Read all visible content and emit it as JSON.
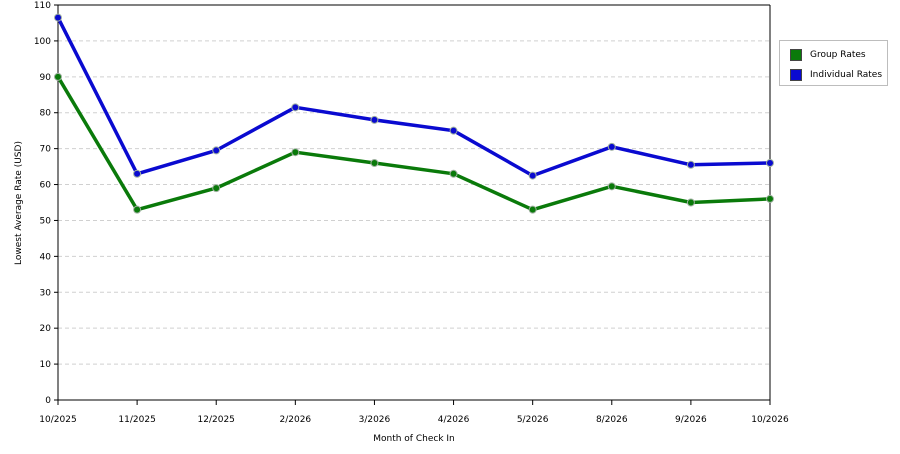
{
  "chart_data": {
    "type": "line",
    "xlabel": "Month of Check In",
    "ylabel": "Lowest Average Rate (USD)",
    "categories": [
      "10/2025",
      "11/2025",
      "12/2025",
      "2/2026",
      "3/2026",
      "4/2026",
      "5/2026",
      "8/2026",
      "9/2026",
      "10/2026"
    ],
    "ylim": [
      0,
      110
    ],
    "yticks": [
      0,
      10,
      20,
      30,
      40,
      50,
      60,
      70,
      80,
      90,
      100,
      110
    ],
    "grid": true,
    "legend_position": "right",
    "series": [
      {
        "name": "Group Rates",
        "color": "#0a7a0a",
        "values": [
          90,
          53,
          59,
          69,
          66,
          63,
          53,
          59.5,
          55,
          56
        ]
      },
      {
        "name": "Individual Rates",
        "color": "#0a0ad0",
        "values": [
          106.5,
          63,
          69.5,
          81.5,
          78,
          75,
          62.5,
          70.5,
          65.5,
          66
        ]
      }
    ]
  }
}
